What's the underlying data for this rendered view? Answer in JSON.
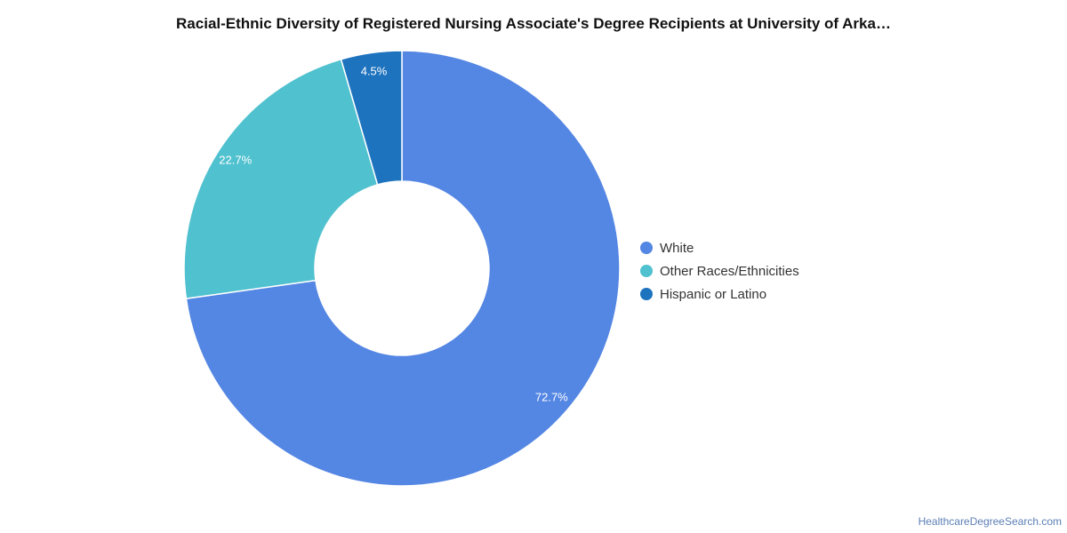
{
  "chart_data": {
    "type": "pie",
    "title": "Racial-Ethnic Diversity of Registered Nursing Associate's Degree Recipients at University of Arka…",
    "donut": true,
    "legend_placement": "right",
    "slices": [
      {
        "name": "White",
        "value": 72.7,
        "label": "72.7%",
        "color": "#5486e3"
      },
      {
        "name": "Other Races/Ethnicities",
        "value": 22.7,
        "label": "22.7%",
        "color": "#50c1cf"
      },
      {
        "name": "Hispanic or Latino",
        "value": 4.5,
        "label": "4.5%",
        "color": "#1e73be"
      }
    ]
  },
  "source": "HealthcareDegreeSearch.com"
}
